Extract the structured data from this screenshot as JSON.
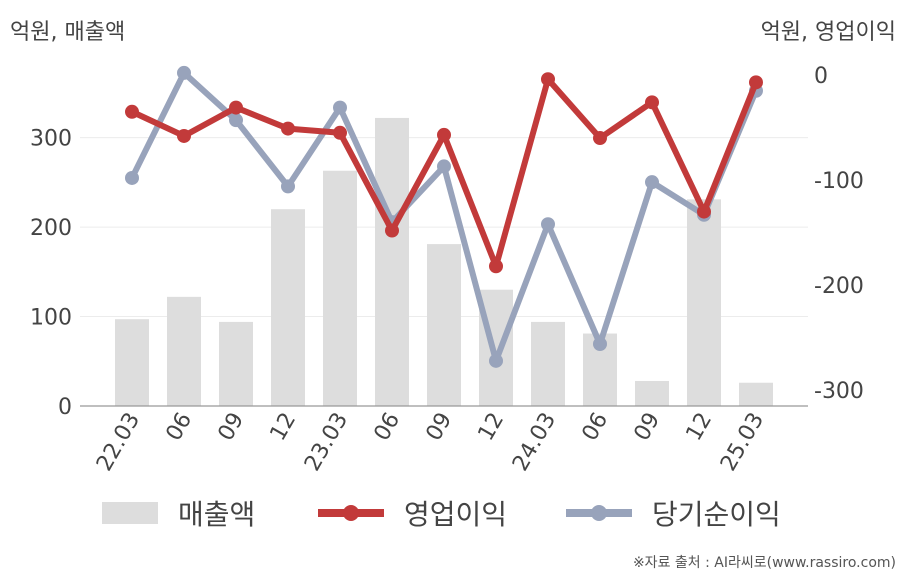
{
  "unit_left": "억원, 매출액",
  "unit_right": "억원, 영업이익",
  "source": "※자료 출처 : AI라씨로(www.rassiro.com)",
  "chart_data": {
    "type": "bar+line",
    "categories": [
      "22.03",
      "06",
      "09",
      "12",
      "23.03",
      "06",
      "09",
      "12",
      "24.03",
      "06",
      "09",
      "12",
      "25.03"
    ],
    "left_axis": {
      "ylim": [
        0,
        370
      ],
      "ticks": [
        0,
        100,
        200,
        300
      ]
    },
    "right_axis": {
      "ylim": [
        -315,
        0
      ],
      "ticks": [
        0,
        -100,
        -200,
        -300
      ]
    },
    "grid": true,
    "legend_position": "bottom",
    "series": [
      {
        "name": "매출액",
        "type": "bar",
        "axis": "left",
        "color": "#dddddd",
        "values": [
          97,
          122,
          94,
          220,
          263,
          322,
          181,
          130,
          94,
          81,
          28,
          231,
          26
        ]
      },
      {
        "name": "영업이익",
        "type": "line",
        "axis": "right",
        "color": "#c23a3a",
        "values": [
          -35,
          -58,
          -31,
          -51,
          -55,
          -148,
          -57,
          -182,
          -4,
          -60,
          -26,
          -130,
          -7
        ]
      },
      {
        "name": "당기순이익",
        "type": "line",
        "axis": "right",
        "color": "#98a3bb",
        "values": [
          -98,
          2,
          -43,
          -106,
          -31,
          -140,
          -87,
          -272,
          -142,
          -256,
          -102,
          -133,
          -15
        ]
      }
    ]
  }
}
